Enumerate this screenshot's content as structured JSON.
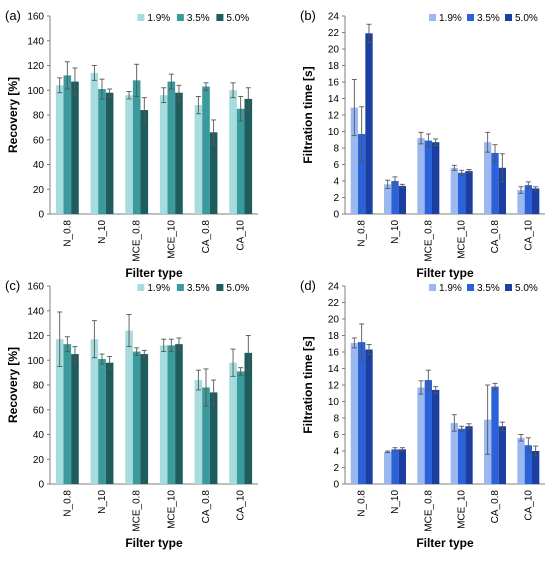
{
  "chart_data": [
    {
      "panel_label": "(a)",
      "type": "bar",
      "ylabel": "Recovery [%]",
      "xlabel": "Filter type",
      "ylim": [
        0,
        160
      ],
      "yticks": [
        "0",
        "20",
        "40",
        "60",
        "80",
        "100",
        "120",
        "140",
        "160"
      ],
      "categories": [
        "N_0.8",
        "N_10",
        "MCE_0.8",
        "MCE_10",
        "CA_0.8",
        "CA_10"
      ],
      "legend_position": "top",
      "series": [
        {
          "name": "1.9%",
          "color": "#a6dcde",
          "values": [
            104,
            114,
            96,
            96,
            88,
            100
          ],
          "errors": [
            6,
            6,
            3,
            6,
            7,
            6
          ]
        },
        {
          "name": "3.5%",
          "color": "#3a9a9c",
          "values": [
            112,
            101,
            108,
            107,
            103,
            85
          ],
          "errors": [
            11,
            8,
            13,
            6,
            3,
            10
          ]
        },
        {
          "name": "5.0%",
          "color": "#1f5c5e",
          "values": [
            107,
            98,
            84,
            98,
            66,
            93
          ],
          "errors": [
            11,
            3,
            10,
            6,
            10,
            9
          ]
        }
      ]
    },
    {
      "panel_label": "(b)",
      "type": "bar",
      "ylabel": "Filtration time [s]",
      "xlabel": "Filter type",
      "ylim": [
        0,
        24
      ],
      "yticks": [
        "0",
        "2",
        "4",
        "6",
        "8",
        "10",
        "12",
        "14",
        "16",
        "18",
        "20",
        "22",
        "24"
      ],
      "categories": [
        "N_0.8",
        "N_10",
        "MCE_0.8",
        "MCE_10",
        "CA_0.8",
        "CA_10"
      ],
      "legend_position": "top",
      "series": [
        {
          "name": "1.9%",
          "color": "#9bb9f0",
          "values": [
            12.9,
            3.6,
            9.2,
            5.6,
            8.7,
            2.9
          ],
          "errors": [
            3.4,
            0.5,
            0.7,
            0.3,
            1.2,
            0.4
          ]
        },
        {
          "name": "3.5%",
          "color": "#2b62d8",
          "values": [
            9.7,
            4.0,
            8.9,
            5.0,
            7.4,
            3.5
          ],
          "errors": [
            3.3,
            0.5,
            0.8,
            0.3,
            1.0,
            0.4
          ]
        },
        {
          "name": "5.0%",
          "color": "#1b3fa0",
          "values": [
            21.9,
            3.4,
            8.7,
            5.2,
            5.6,
            3.1
          ],
          "errors": [
            1.1,
            0.2,
            0.4,
            0.2,
            1.7,
            0.2
          ]
        }
      ]
    },
    {
      "panel_label": "(c)",
      "type": "bar",
      "ylabel": "Recovery [%]",
      "xlabel": "Filter type",
      "ylim": [
        0,
        160
      ],
      "yticks": [
        "0",
        "20",
        "40",
        "60",
        "80",
        "100",
        "120",
        "140",
        "160"
      ],
      "categories": [
        "N_0.8",
        "N_10",
        "MCE_0.8",
        "MCE_10",
        "CA_0.8",
        "CA_10"
      ],
      "legend_position": "top",
      "series": [
        {
          "name": "1.9%",
          "color": "#a6dcde",
          "values": [
            117,
            117,
            124,
            112,
            84,
            98
          ],
          "errors": [
            22,
            15,
            13,
            5,
            8,
            11
          ]
        },
        {
          "name": "3.5%",
          "color": "#3a9a9c",
          "values": [
            113,
            101,
            107,
            112,
            78,
            91
          ],
          "errors": [
            6,
            4,
            3,
            5,
            15,
            3
          ]
        },
        {
          "name": "5.0%",
          "color": "#1f5c5e",
          "values": [
            105,
            98,
            105,
            113,
            74,
            106
          ],
          "errors": [
            6,
            5,
            3,
            5,
            10,
            14
          ]
        }
      ]
    },
    {
      "panel_label": "(d)",
      "type": "bar",
      "ylabel": "Filtration time [s]",
      "xlabel": "Filter type",
      "ylim": [
        0,
        24
      ],
      "yticks": [
        "0",
        "2",
        "4",
        "6",
        "8",
        "10",
        "12",
        "14",
        "16",
        "18",
        "20",
        "22",
        "24"
      ],
      "categories": [
        "N_0.8",
        "N_10",
        "MCE_0.8",
        "MCE_10",
        "CA_0.8",
        "CA_10"
      ],
      "legend_position": "top",
      "series": [
        {
          "name": "1.9%",
          "color": "#9bb9f0",
          "values": [
            17.1,
            3.9,
            11.7,
            7.4,
            7.8,
            5.6
          ],
          "errors": [
            0.6,
            0.1,
            0.8,
            1.0,
            4.2,
            0.4
          ]
        },
        {
          "name": "3.5%",
          "color": "#2b62d8",
          "values": [
            17.2,
            4.2,
            12.6,
            6.7,
            11.8,
            4.7
          ],
          "errors": [
            2.2,
            0.2,
            1.2,
            0.3,
            0.4,
            0.9
          ]
        },
        {
          "name": "5.0%",
          "color": "#1b3fa0",
          "values": [
            16.3,
            4.2,
            11.4,
            7.0,
            7.0,
            4.0
          ],
          "errors": [
            0.6,
            0.2,
            0.4,
            0.3,
            0.5,
            0.6
          ]
        }
      ]
    }
  ]
}
